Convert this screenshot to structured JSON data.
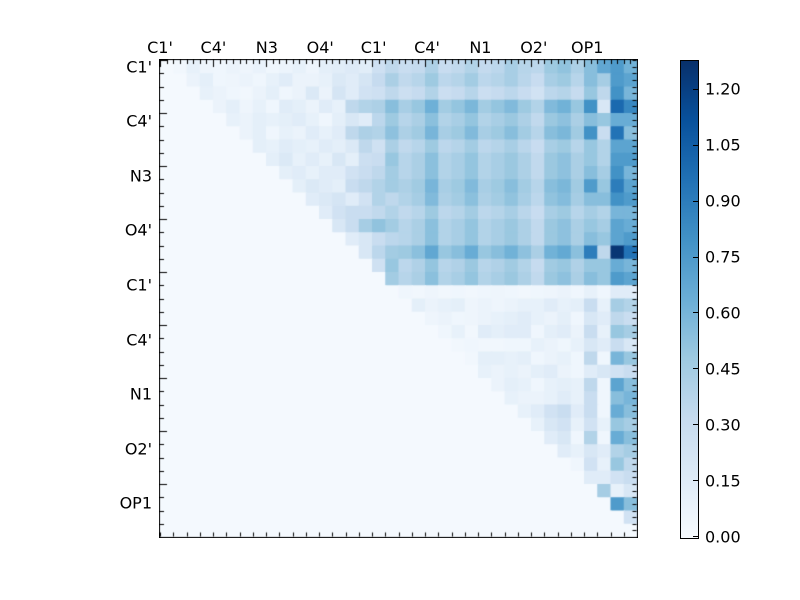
{
  "chart_data": {
    "type": "heatmap",
    "title": "",
    "x_tick_labels": [
      "C1'",
      "C4'",
      "N3",
      "O4'",
      "C1'",
      "C4'",
      "N1",
      "O2'",
      "OP1"
    ],
    "y_tick_labels": [
      "C1'",
      "C4'",
      "N3",
      "O4'",
      "C1'",
      "C4'",
      "N1",
      "O2'",
      "OP1"
    ],
    "matrix_size": 36,
    "labels_every_n_cells": 4,
    "vmin": 0.0,
    "vmax": 1.28,
    "colormap": "Blues",
    "grid": false,
    "legend_position": "right-colorbar",
    "colorbar_tick_labels": [
      "1.20",
      "1.05",
      "0.90",
      "0.75",
      "0.60",
      "0.45",
      "0.30",
      "0.15",
      "0.00"
    ],
    "colormap_stops": [
      [
        0.0,
        "#f7fbff"
      ],
      [
        0.125,
        "#deebf7"
      ],
      [
        0.25,
        "#c6dbef"
      ],
      [
        0.375,
        "#9ecae1"
      ],
      [
        0.5,
        "#6baed6"
      ],
      [
        0.625,
        "#4292c6"
      ],
      [
        0.75,
        "#2171b5"
      ],
      [
        0.875,
        "#08519c"
      ],
      [
        1.0,
        "#08306b"
      ]
    ],
    "matrix": [
      [
        0.02,
        0.04,
        0.1,
        0.06,
        0.05,
        0.08,
        0.06,
        0.09,
        0.05,
        0.07,
        0.1,
        0.06,
        0.12,
        0.14,
        0.17,
        0.14,
        0.27,
        0.35,
        0.3,
        0.33,
        0.42,
        0.31,
        0.34,
        0.4,
        0.33,
        0.36,
        0.44,
        0.38,
        0.36,
        0.48,
        0.52,
        0.42,
        0.55,
        0.68,
        0.75,
        0.62
      ],
      [
        0.02,
        0.02,
        0.08,
        0.12,
        0.05,
        0.06,
        0.08,
        0.05,
        0.1,
        0.15,
        0.08,
        0.08,
        0.1,
        0.18,
        0.15,
        0.22,
        0.32,
        0.43,
        0.34,
        0.38,
        0.48,
        0.36,
        0.39,
        0.46,
        0.36,
        0.39,
        0.44,
        0.37,
        0.31,
        0.44,
        0.48,
        0.38,
        0.55,
        0.45,
        0.75,
        0.7
      ],
      [
        0.02,
        0.02,
        0.02,
        0.1,
        0.08,
        0.05,
        0.04,
        0.08,
        0.12,
        0.05,
        0.08,
        0.18,
        0.08,
        0.22,
        0.15,
        0.25,
        0.27,
        0.35,
        0.28,
        0.32,
        0.4,
        0.29,
        0.32,
        0.38,
        0.29,
        0.32,
        0.36,
        0.31,
        0.25,
        0.36,
        0.39,
        0.32,
        0.5,
        0.35,
        0.8,
        0.6
      ],
      [
        0.02,
        0.02,
        0.02,
        0.02,
        0.08,
        0.12,
        0.06,
        0.1,
        0.05,
        0.15,
        0.12,
        0.08,
        0.15,
        0.1,
        0.35,
        0.4,
        0.42,
        0.55,
        0.44,
        0.5,
        0.63,
        0.46,
        0.51,
        0.59,
        0.46,
        0.51,
        0.57,
        0.48,
        0.4,
        0.57,
        0.62,
        0.5,
        0.8,
        0.2,
        1.0,
        0.85
      ],
      [
        0.02,
        0.02,
        0.02,
        0.02,
        0.02,
        0.1,
        0.08,
        0.12,
        0.1,
        0.12,
        0.15,
        0.1,
        0.05,
        0.12,
        0.2,
        0.15,
        0.36,
        0.48,
        0.38,
        0.43,
        0.54,
        0.4,
        0.44,
        0.51,
        0.4,
        0.44,
        0.49,
        0.42,
        0.34,
        0.49,
        0.53,
        0.43,
        0.55,
        0.5,
        0.65,
        0.65
      ],
      [
        0.02,
        0.02,
        0.02,
        0.02,
        0.02,
        0.02,
        0.08,
        0.12,
        0.05,
        0.1,
        0.08,
        0.15,
        0.1,
        0.15,
        0.35,
        0.42,
        0.4,
        0.53,
        0.42,
        0.47,
        0.6,
        0.44,
        0.48,
        0.57,
        0.44,
        0.48,
        0.55,
        0.46,
        0.38,
        0.55,
        0.59,
        0.47,
        0.8,
        0.3,
        0.95,
        0.55
      ],
      [
        0.02,
        0.02,
        0.02,
        0.02,
        0.02,
        0.02,
        0.02,
        0.12,
        0.1,
        0.15,
        0.12,
        0.1,
        0.15,
        0.12,
        0.18,
        0.35,
        0.26,
        0.43,
        0.34,
        0.38,
        0.48,
        0.36,
        0.39,
        0.46,
        0.36,
        0.39,
        0.44,
        0.37,
        0.31,
        0.44,
        0.48,
        0.38,
        0.5,
        0.4,
        0.7,
        0.7
      ],
      [
        0.02,
        0.02,
        0.02,
        0.02,
        0.02,
        0.02,
        0.02,
        0.02,
        0.12,
        0.18,
        0.1,
        0.15,
        0.1,
        0.2,
        0.12,
        0.28,
        0.3,
        0.5,
        0.38,
        0.43,
        0.54,
        0.4,
        0.44,
        0.51,
        0.4,
        0.44,
        0.49,
        0.42,
        0.34,
        0.49,
        0.53,
        0.43,
        0.5,
        0.4,
        0.75,
        0.75
      ],
      [
        0.02,
        0.02,
        0.02,
        0.02,
        0.02,
        0.02,
        0.02,
        0.02,
        0.02,
        0.12,
        0.15,
        0.1,
        0.15,
        0.15,
        0.25,
        0.3,
        0.35,
        0.46,
        0.38,
        0.43,
        0.54,
        0.4,
        0.44,
        0.51,
        0.4,
        0.44,
        0.49,
        0.42,
        0.34,
        0.49,
        0.53,
        0.43,
        0.55,
        0.45,
        0.8,
        0.6
      ],
      [
        0.02,
        0.02,
        0.02,
        0.02,
        0.02,
        0.02,
        0.02,
        0.02,
        0.02,
        0.02,
        0.12,
        0.18,
        0.15,
        0.12,
        0.3,
        0.35,
        0.4,
        0.46,
        0.42,
        0.47,
        0.6,
        0.44,
        0.48,
        0.57,
        0.44,
        0.48,
        0.55,
        0.46,
        0.38,
        0.55,
        0.59,
        0.47,
        0.75,
        0.5,
        0.9,
        0.7
      ],
      [
        0.02,
        0.02,
        0.02,
        0.02,
        0.02,
        0.02,
        0.02,
        0.02,
        0.02,
        0.02,
        0.02,
        0.15,
        0.18,
        0.22,
        0.15,
        0.25,
        0.4,
        0.35,
        0.4,
        0.45,
        0.57,
        0.42,
        0.46,
        0.54,
        0.42,
        0.46,
        0.52,
        0.44,
        0.36,
        0.52,
        0.56,
        0.45,
        0.55,
        0.55,
        0.8,
        0.75
      ],
      [
        0.02,
        0.02,
        0.02,
        0.02,
        0.02,
        0.02,
        0.02,
        0.02,
        0.02,
        0.02,
        0.02,
        0.02,
        0.15,
        0.25,
        0.3,
        0.3,
        0.34,
        0.4,
        0.34,
        0.38,
        0.48,
        0.36,
        0.39,
        0.46,
        0.36,
        0.39,
        0.44,
        0.37,
        0.31,
        0.44,
        0.48,
        0.38,
        0.45,
        0.4,
        0.6,
        0.6
      ],
      [
        0.02,
        0.02,
        0.02,
        0.02,
        0.02,
        0.02,
        0.02,
        0.02,
        0.02,
        0.02,
        0.02,
        0.02,
        0.02,
        0.2,
        0.3,
        0.45,
        0.52,
        0.46,
        0.38,
        0.43,
        0.54,
        0.4,
        0.44,
        0.51,
        0.4,
        0.44,
        0.49,
        0.42,
        0.34,
        0.49,
        0.53,
        0.43,
        0.5,
        0.45,
        0.7,
        0.65
      ],
      [
        0.02,
        0.02,
        0.02,
        0.02,
        0.02,
        0.02,
        0.02,
        0.02,
        0.02,
        0.02,
        0.02,
        0.02,
        0.02,
        0.02,
        0.15,
        0.2,
        0.3,
        0.36,
        0.38,
        0.43,
        0.54,
        0.4,
        0.44,
        0.51,
        0.4,
        0.44,
        0.49,
        0.42,
        0.34,
        0.49,
        0.53,
        0.43,
        0.55,
        0.5,
        0.7,
        0.75
      ],
      [
        0.02,
        0.02,
        0.02,
        0.02,
        0.02,
        0.02,
        0.02,
        0.02,
        0.02,
        0.02,
        0.02,
        0.02,
        0.02,
        0.02,
        0.02,
        0.2,
        0.36,
        0.46,
        0.48,
        0.54,
        0.68,
        0.5,
        0.55,
        0.65,
        0.5,
        0.55,
        0.62,
        0.53,
        0.43,
        0.62,
        0.67,
        0.54,
        0.9,
        0.35,
        1.25,
        0.95
      ],
      [
        0.02,
        0.02,
        0.02,
        0.02,
        0.02,
        0.02,
        0.02,
        0.02,
        0.02,
        0.02,
        0.02,
        0.02,
        0.02,
        0.02,
        0.02,
        0.02,
        0.26,
        0.5,
        0.36,
        0.41,
        0.51,
        0.38,
        0.41,
        0.49,
        0.38,
        0.41,
        0.47,
        0.4,
        0.32,
        0.47,
        0.5,
        0.41,
        0.5,
        0.5,
        0.65,
        0.6
      ],
      [
        0.02,
        0.02,
        0.02,
        0.02,
        0.02,
        0.02,
        0.02,
        0.02,
        0.02,
        0.02,
        0.02,
        0.02,
        0.02,
        0.02,
        0.02,
        0.02,
        0.02,
        0.46,
        0.38,
        0.43,
        0.54,
        0.4,
        0.44,
        0.51,
        0.4,
        0.44,
        0.49,
        0.42,
        0.34,
        0.49,
        0.53,
        0.43,
        0.55,
        0.5,
        0.75,
        0.7
      ],
      [
        0.02,
        0.02,
        0.02,
        0.02,
        0.02,
        0.02,
        0.02,
        0.02,
        0.02,
        0.02,
        0.02,
        0.02,
        0.02,
        0.02,
        0.02,
        0.02,
        0.02,
        0.02,
        0.05,
        0.04,
        0.06,
        0.04,
        0.05,
        0.04,
        0.05,
        0.06,
        0.05,
        0.04,
        0.05,
        0.06,
        0.08,
        0.05,
        0.1,
        0.05,
        0.15,
        0.15
      ],
      [
        0.02,
        0.02,
        0.02,
        0.02,
        0.02,
        0.02,
        0.02,
        0.02,
        0.02,
        0.02,
        0.02,
        0.02,
        0.02,
        0.02,
        0.02,
        0.02,
        0.02,
        0.02,
        0.02,
        0.12,
        0.08,
        0.1,
        0.12,
        0.06,
        0.08,
        0.06,
        0.08,
        0.1,
        0.1,
        0.15,
        0.1,
        0.12,
        0.3,
        0.1,
        0.45,
        0.4
      ],
      [
        0.02,
        0.02,
        0.02,
        0.02,
        0.02,
        0.02,
        0.02,
        0.02,
        0.02,
        0.02,
        0.02,
        0.02,
        0.02,
        0.02,
        0.02,
        0.02,
        0.02,
        0.02,
        0.02,
        0.02,
        0.06,
        0.08,
        0.05,
        0.06,
        0.08,
        0.1,
        0.12,
        0.15,
        0.1,
        0.08,
        0.12,
        0.05,
        0.2,
        0.15,
        0.35,
        0.3
      ],
      [
        0.02,
        0.02,
        0.02,
        0.02,
        0.02,
        0.02,
        0.02,
        0.02,
        0.02,
        0.02,
        0.02,
        0.02,
        0.02,
        0.02,
        0.02,
        0.02,
        0.02,
        0.02,
        0.02,
        0.02,
        0.02,
        0.05,
        0.1,
        0.04,
        0.15,
        0.12,
        0.15,
        0.15,
        0.05,
        0.12,
        0.15,
        0.08,
        0.3,
        0.1,
        0.5,
        0.45
      ],
      [
        0.02,
        0.02,
        0.02,
        0.02,
        0.02,
        0.02,
        0.02,
        0.02,
        0.02,
        0.02,
        0.02,
        0.02,
        0.02,
        0.02,
        0.02,
        0.02,
        0.02,
        0.02,
        0.02,
        0.02,
        0.02,
        0.02,
        0.04,
        0.05,
        0.04,
        0.04,
        0.05,
        0.05,
        0.1,
        0.08,
        0.05,
        0.1,
        0.2,
        0.15,
        0.3,
        0.2
      ],
      [
        0.02,
        0.02,
        0.02,
        0.02,
        0.02,
        0.02,
        0.02,
        0.02,
        0.02,
        0.02,
        0.02,
        0.02,
        0.02,
        0.02,
        0.02,
        0.02,
        0.02,
        0.02,
        0.02,
        0.02,
        0.02,
        0.02,
        0.02,
        0.04,
        0.12,
        0.12,
        0.1,
        0.12,
        0.05,
        0.08,
        0.1,
        0.05,
        0.35,
        0.05,
        0.6,
        0.5
      ],
      [
        0.02,
        0.02,
        0.02,
        0.02,
        0.02,
        0.02,
        0.02,
        0.02,
        0.02,
        0.02,
        0.02,
        0.02,
        0.02,
        0.02,
        0.02,
        0.02,
        0.02,
        0.02,
        0.02,
        0.02,
        0.02,
        0.02,
        0.02,
        0.02,
        0.1,
        0.08,
        0.1,
        0.08,
        0.12,
        0.15,
        0.08,
        0.05,
        0.15,
        0.2,
        0.25,
        0.3
      ],
      [
        0.02,
        0.02,
        0.02,
        0.02,
        0.02,
        0.02,
        0.02,
        0.02,
        0.02,
        0.02,
        0.02,
        0.02,
        0.02,
        0.02,
        0.02,
        0.02,
        0.02,
        0.02,
        0.02,
        0.02,
        0.02,
        0.02,
        0.02,
        0.02,
        0.02,
        0.08,
        0.12,
        0.1,
        0.05,
        0.1,
        0.12,
        0.1,
        0.35,
        0.05,
        0.7,
        0.55
      ],
      [
        0.02,
        0.02,
        0.02,
        0.02,
        0.02,
        0.02,
        0.02,
        0.02,
        0.02,
        0.02,
        0.02,
        0.02,
        0.02,
        0.02,
        0.02,
        0.02,
        0.02,
        0.02,
        0.02,
        0.02,
        0.02,
        0.02,
        0.02,
        0.02,
        0.02,
        0.02,
        0.1,
        0.08,
        0.08,
        0.1,
        0.15,
        0.1,
        0.3,
        0.05,
        0.55,
        0.6
      ],
      [
        0.02,
        0.02,
        0.02,
        0.02,
        0.02,
        0.02,
        0.02,
        0.02,
        0.02,
        0.02,
        0.02,
        0.02,
        0.02,
        0.02,
        0.02,
        0.02,
        0.02,
        0.02,
        0.02,
        0.02,
        0.02,
        0.02,
        0.02,
        0.02,
        0.02,
        0.02,
        0.02,
        0.1,
        0.15,
        0.25,
        0.3,
        0.15,
        0.3,
        0.05,
        0.65,
        0.55
      ],
      [
        0.02,
        0.02,
        0.02,
        0.02,
        0.02,
        0.02,
        0.02,
        0.02,
        0.02,
        0.02,
        0.02,
        0.02,
        0.02,
        0.02,
        0.02,
        0.02,
        0.02,
        0.02,
        0.02,
        0.02,
        0.02,
        0.02,
        0.02,
        0.02,
        0.02,
        0.02,
        0.02,
        0.02,
        0.1,
        0.2,
        0.25,
        0.1,
        0.25,
        0.1,
        0.5,
        0.45
      ],
      [
        0.02,
        0.02,
        0.02,
        0.02,
        0.02,
        0.02,
        0.02,
        0.02,
        0.02,
        0.02,
        0.02,
        0.02,
        0.02,
        0.02,
        0.02,
        0.02,
        0.02,
        0.02,
        0.02,
        0.02,
        0.02,
        0.02,
        0.02,
        0.02,
        0.02,
        0.02,
        0.02,
        0.02,
        0.02,
        0.15,
        0.2,
        0.05,
        0.4,
        0.05,
        0.65,
        0.55
      ],
      [
        0.02,
        0.02,
        0.02,
        0.02,
        0.02,
        0.02,
        0.02,
        0.02,
        0.02,
        0.02,
        0.02,
        0.02,
        0.02,
        0.02,
        0.02,
        0.02,
        0.02,
        0.02,
        0.02,
        0.02,
        0.02,
        0.02,
        0.02,
        0.02,
        0.02,
        0.02,
        0.02,
        0.02,
        0.02,
        0.02,
        0.15,
        0.1,
        0.2,
        0.15,
        0.4,
        0.45
      ],
      [
        0.02,
        0.02,
        0.02,
        0.02,
        0.02,
        0.02,
        0.02,
        0.02,
        0.02,
        0.02,
        0.02,
        0.02,
        0.02,
        0.02,
        0.02,
        0.02,
        0.02,
        0.02,
        0.02,
        0.02,
        0.02,
        0.02,
        0.02,
        0.02,
        0.02,
        0.02,
        0.02,
        0.02,
        0.02,
        0.02,
        0.02,
        0.05,
        0.25,
        0.1,
        0.5,
        0.35
      ],
      [
        0.02,
        0.02,
        0.02,
        0.02,
        0.02,
        0.02,
        0.02,
        0.02,
        0.02,
        0.02,
        0.02,
        0.02,
        0.02,
        0.02,
        0.02,
        0.02,
        0.02,
        0.02,
        0.02,
        0.02,
        0.02,
        0.02,
        0.02,
        0.02,
        0.02,
        0.02,
        0.02,
        0.02,
        0.02,
        0.02,
        0.02,
        0.02,
        0.15,
        0.15,
        0.25,
        0.3
      ],
      [
        0.02,
        0.02,
        0.02,
        0.02,
        0.02,
        0.02,
        0.02,
        0.02,
        0.02,
        0.02,
        0.02,
        0.02,
        0.02,
        0.02,
        0.02,
        0.02,
        0.02,
        0.02,
        0.02,
        0.02,
        0.02,
        0.02,
        0.02,
        0.02,
        0.02,
        0.02,
        0.02,
        0.02,
        0.02,
        0.02,
        0.02,
        0.02,
        0.02,
        0.45,
        0.1,
        0.2
      ],
      [
        0.02,
        0.02,
        0.02,
        0.02,
        0.02,
        0.02,
        0.02,
        0.02,
        0.02,
        0.02,
        0.02,
        0.02,
        0.02,
        0.02,
        0.02,
        0.02,
        0.02,
        0.02,
        0.02,
        0.02,
        0.02,
        0.02,
        0.02,
        0.02,
        0.02,
        0.02,
        0.02,
        0.02,
        0.02,
        0.02,
        0.02,
        0.02,
        0.02,
        0.02,
        0.75,
        0.55
      ],
      [
        0.02,
        0.02,
        0.02,
        0.02,
        0.02,
        0.02,
        0.02,
        0.02,
        0.02,
        0.02,
        0.02,
        0.02,
        0.02,
        0.02,
        0.02,
        0.02,
        0.02,
        0.02,
        0.02,
        0.02,
        0.02,
        0.02,
        0.02,
        0.02,
        0.02,
        0.02,
        0.02,
        0.02,
        0.02,
        0.02,
        0.02,
        0.02,
        0.02,
        0.02,
        0.02,
        0.25
      ],
      [
        0.02,
        0.02,
        0.02,
        0.02,
        0.02,
        0.02,
        0.02,
        0.02,
        0.02,
        0.02,
        0.02,
        0.02,
        0.02,
        0.02,
        0.02,
        0.02,
        0.02,
        0.02,
        0.02,
        0.02,
        0.02,
        0.02,
        0.02,
        0.02,
        0.02,
        0.02,
        0.02,
        0.02,
        0.02,
        0.02,
        0.02,
        0.02,
        0.02,
        0.02,
        0.02,
        0.02
      ]
    ]
  }
}
